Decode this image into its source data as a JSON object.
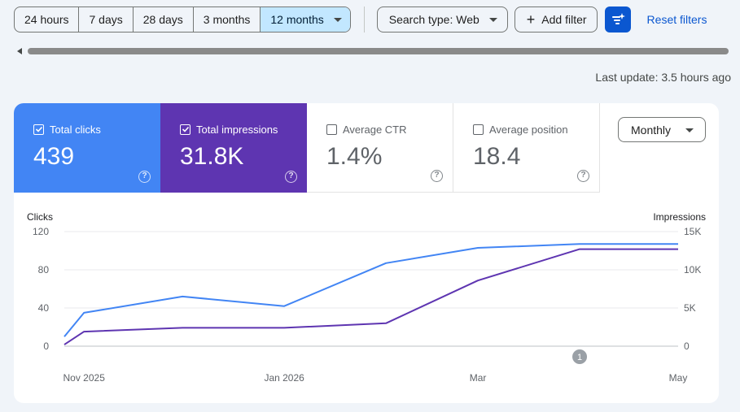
{
  "toolbar": {
    "ranges": [
      "24 hours",
      "7 days",
      "28 days",
      "3 months",
      "12 months"
    ],
    "active_range": "12 months",
    "search_type": "Search type: Web",
    "add_filter": "Add filter",
    "reset_filters": "Reset filters"
  },
  "last_update": "Last update: 3.5 hours ago",
  "metrics": [
    {
      "label": "Total clicks",
      "value": "439",
      "checked": true
    },
    {
      "label": "Total impressions",
      "value": "31.8K",
      "checked": true
    },
    {
      "label": "Average CTR",
      "value": "1.4%",
      "checked": false
    },
    {
      "label": "Average position",
      "value": "18.4",
      "checked": false
    }
  ],
  "metric_help": "?",
  "granularity": "Monthly",
  "colors": {
    "clicks": "#4285f4",
    "impressions": "#5e35b1",
    "accent": "#0b57d0",
    "active_range_bg": "#c2e7ff"
  },
  "chart_data": {
    "type": "line",
    "y_left_title": "Clicks",
    "y_right_title": "Impressions",
    "y_left_ticks": [
      "0",
      "40",
      "80",
      "120"
    ],
    "y_right_ticks": [
      "0",
      "5K",
      "10K",
      "15K"
    ],
    "y_left_range": [
      0,
      120
    ],
    "y_right_range": [
      0,
      15000
    ],
    "x_tick_labels": [
      "Nov 2025",
      "Jan 2026",
      "Mar",
      "May"
    ],
    "x_tick_positions": [
      "2025-11-01",
      "2026-01-01",
      "2026-03-01",
      "2026-05-01"
    ],
    "x_range": [
      "2025-10-26",
      "2026-05-01"
    ],
    "grid": true,
    "annotation_label": "1",
    "annotation_date": "2026-04-01",
    "series": [
      {
        "name": "Total clicks",
        "axis": "left",
        "color": "#4285f4",
        "x": [
          "2025-10-26",
          "2025-11-01",
          "2025-12-01",
          "2026-01-01",
          "2026-02-01",
          "2026-03-01",
          "2026-04-01",
          "2026-05-01"
        ],
        "values": [
          10,
          35,
          52,
          42,
          87,
          103,
          107,
          107
        ]
      },
      {
        "name": "Total impressions",
        "axis": "right",
        "color": "#5e35b1",
        "x": [
          "2025-10-26",
          "2025-11-01",
          "2025-12-01",
          "2026-01-01",
          "2026-02-01",
          "2026-03-01",
          "2026-04-01",
          "2026-05-01"
        ],
        "values": [
          200,
          1900,
          2400,
          2400,
          3000,
          8600,
          12700,
          12700
        ]
      }
    ]
  }
}
